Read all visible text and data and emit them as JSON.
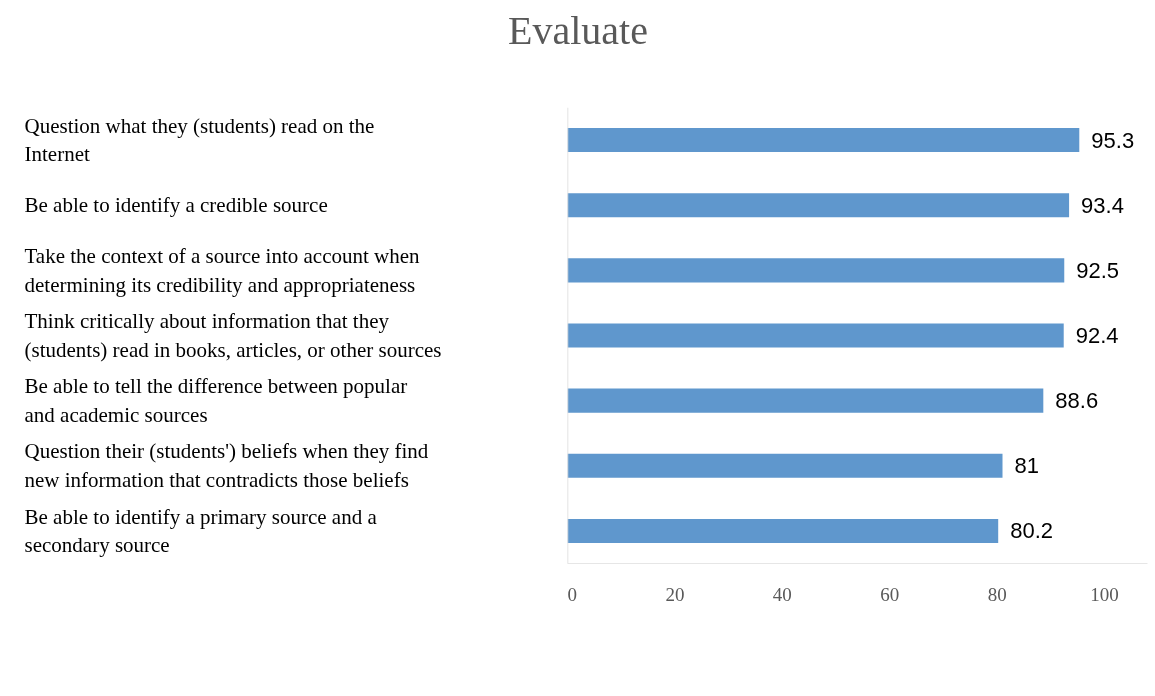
{
  "chart_data": {
    "type": "bar",
    "orientation": "horizontal",
    "title": "Evaluate",
    "categories": [
      "Question what they (students) read on the Internet",
      "Be able to identify a credible source",
      "Take the context of a source into account when determining its credibility and appropriateness",
      "Think critically about information that they (students) read in books, articles, or other sources",
      "Be able to tell the difference between popular and academic sources",
      "Question their (students') beliefs when they find new information that contradicts those beliefs",
      "Be able to identify a primary source and a secondary source"
    ],
    "values": [
      95.3,
      93.4,
      92.5,
      92.4,
      88.6,
      81,
      80.2
    ],
    "color": "#5f97cd",
    "xlim": [
      0,
      108
    ],
    "xticks": [
      0,
      20,
      40,
      60,
      80,
      100
    ],
    "grid": false,
    "data_labels": true
  }
}
